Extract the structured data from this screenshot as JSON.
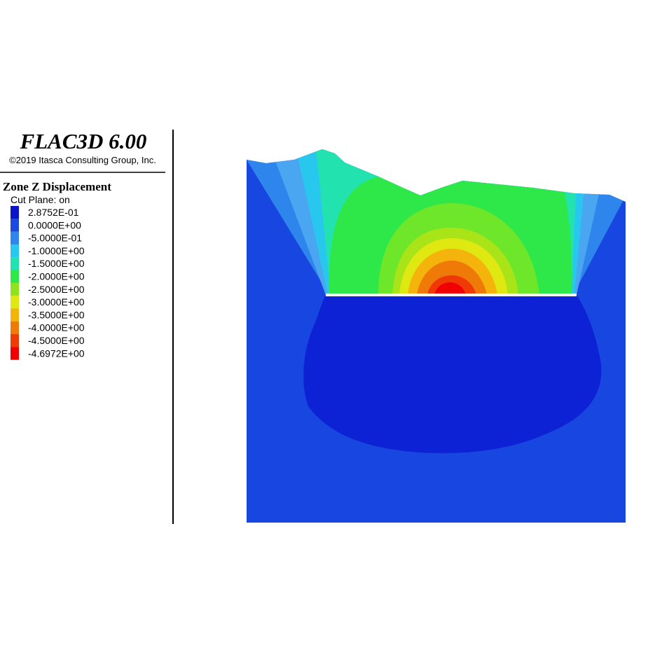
{
  "header": {
    "title": "FLAC3D 6.00",
    "copyright": "©2019 Itasca Consulting Group, Inc."
  },
  "legend": {
    "title": "Zone Z Displacement",
    "subtitle": "Cut Plane: on",
    "entries": [
      {
        "label": "2.8752E-01",
        "color": "#0a14c8"
      },
      {
        "label": "0.0000E+00",
        "color": "#1a48e0"
      },
      {
        "label": "-5.0000E-01",
        "color": "#2e86ec"
      },
      {
        "label": "-1.0000E+00",
        "color": "#28c8ee"
      },
      {
        "label": "-1.5000E+00",
        "color": "#22e2b0"
      },
      {
        "label": "-2.0000E+00",
        "color": "#2ee84a"
      },
      {
        "label": "-2.5000E+00",
        "color": "#8ee41c"
      },
      {
        "label": "-3.0000E+00",
        "color": "#e0e812"
      },
      {
        "label": "-3.5000E+00",
        "color": "#f4b40c"
      },
      {
        "label": "-4.0000E+00",
        "color": "#f07a08"
      },
      {
        "label": "-4.5000E+00",
        "color": "#f03a06"
      },
      {
        "label": "-4.6972E+00",
        "color": "#f00000"
      }
    ]
  }
}
